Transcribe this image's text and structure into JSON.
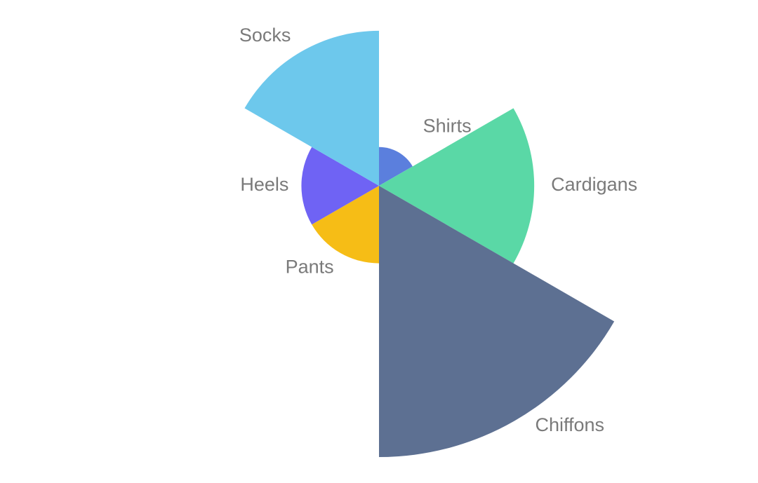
{
  "chart_data": {
    "type": "pie",
    "variant": "rose",
    "title": "",
    "categories": [
      "Shirts",
      "Cardigans",
      "Chiffons",
      "Pants",
      "Heels",
      "Socks"
    ],
    "values": [
      10,
      40,
      70,
      20,
      20,
      40
    ],
    "colors": [
      "#5b7fdd",
      "#5ad8a6",
      "#5d7092",
      "#f6bd16",
      "#6f63f4",
      "#6dc8ec"
    ],
    "legend": "none",
    "labels": "outside"
  }
}
